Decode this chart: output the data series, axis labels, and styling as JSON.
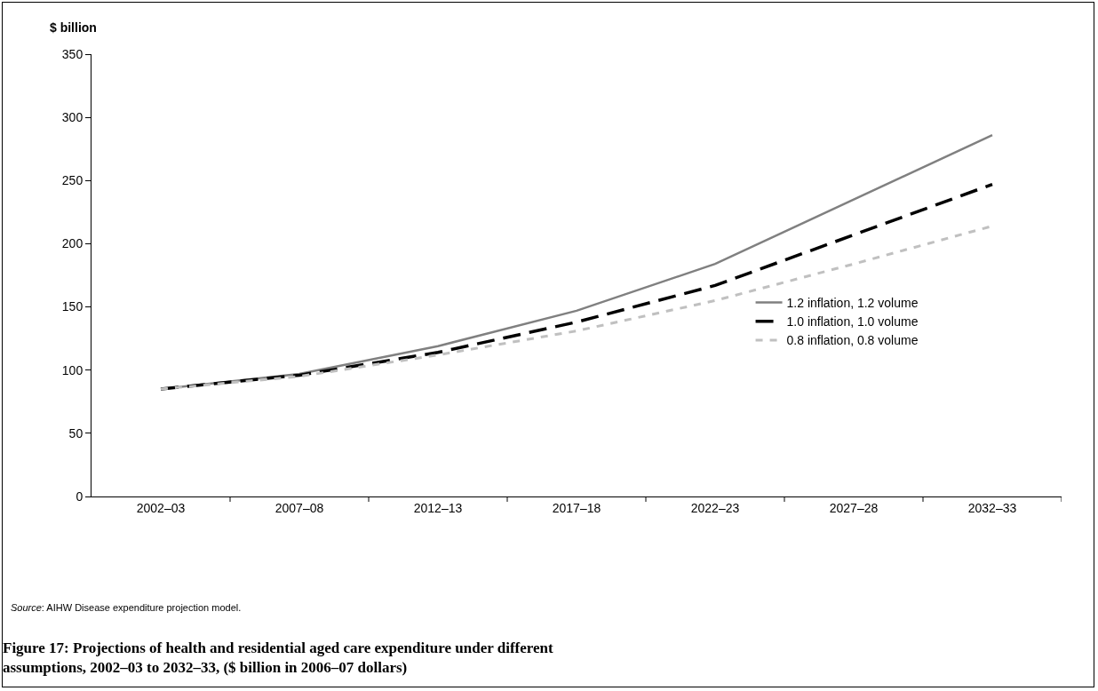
{
  "chart_data": {
    "type": "line",
    "title": "Figure 17: Projections of health and residential aged care expenditure under different assumptions, 2002–03 to 2032–33, ($ billion in 2006–07 dollars)",
    "ylabel": "$ billion",
    "annotations": [
      "Source: AIHW Disease expenditure projection model."
    ],
    "categories": [
      "2002–03",
      "2007–08",
      "2012–13",
      "2017–18",
      "2022–23",
      "2027–28",
      "2032–33"
    ],
    "series": [
      {
        "name": "1.2 inflation, 1.2 volume",
        "color": "#808080",
        "line_style": "solid",
        "values": [
          85,
          97,
          119,
          147,
          184,
          235,
          286
        ]
      },
      {
        "name": "1.0 inflation, 1.0 volume",
        "color": "#000000",
        "line_style": "dashed",
        "values": [
          85,
          96,
          114,
          138,
          167,
          207,
          247
        ]
      },
      {
        "name": "0.8 inflation, 0.8 volume",
        "color": "#c0c0c0",
        "line_style": "dotted",
        "values": [
          85,
          95,
          112,
          131,
          155,
          184,
          214
        ]
      }
    ],
    "ylim": [
      0,
      350
    ],
    "yticks": [
      0,
      50,
      100,
      150,
      200,
      250,
      300,
      350
    ],
    "grid": false,
    "legend": "right",
    "marker": "none"
  }
}
